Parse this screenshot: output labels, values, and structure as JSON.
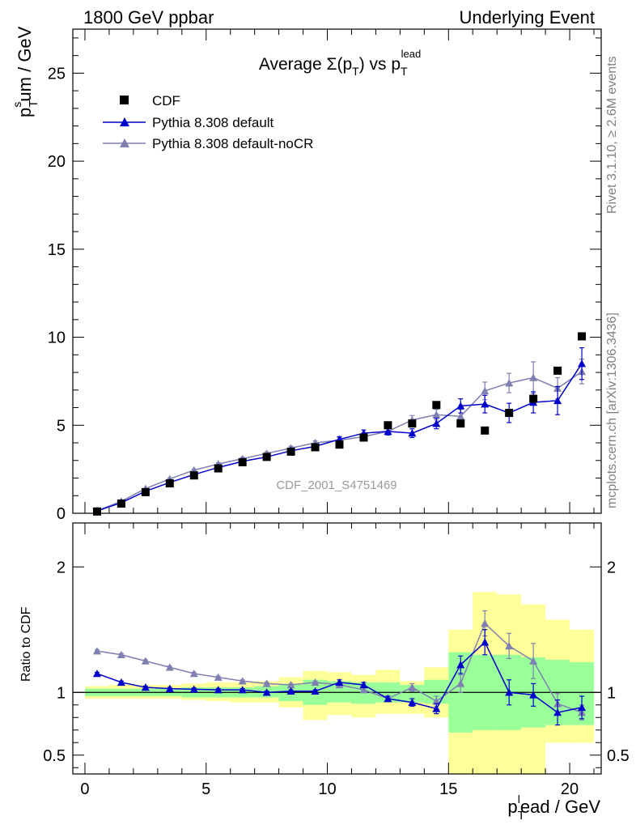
{
  "header": {
    "left": "1800 GeV ppbar",
    "right": "Underlying Event",
    "side_top": "Rivet 3.1.10, ≥ 2.6M events",
    "side_bottom": "mcplots.cern.ch [arXiv:1306.3436]"
  },
  "chart_data": [
    {
      "type": "scatter",
      "panel": "main",
      "title": "Average Σ(p_T) vs p_T^lead",
      "ylabel": "p_T^sum / GeV",
      "ylim": [
        0,
        27.5
      ],
      "xlim": [
        -0.5,
        21.3
      ],
      "yticks": [
        0,
        5,
        10,
        15,
        20,
        25
      ],
      "watermark": "CDF_2001_S4751469",
      "legend_position": "top-left",
      "x": [
        0.5,
        1.5,
        2.5,
        3.5,
        4.5,
        5.5,
        6.5,
        7.5,
        8.5,
        9.5,
        10.5,
        11.5,
        12.5,
        13.5,
        14.5,
        15.5,
        16.5,
        17.5,
        18.5,
        19.5,
        20.5
      ],
      "series": [
        {
          "name": "CDF",
          "color": "#000000",
          "marker": "square",
          "values": [
            0.1,
            0.55,
            1.2,
            1.7,
            2.15,
            2.55,
            2.9,
            3.2,
            3.5,
            3.75,
            3.9,
            4.3,
            5.0,
            5.1,
            6.15,
            5.1,
            4.7,
            5.7,
            6.5,
            8.1,
            10.05
          ]
        },
        {
          "name": "Pythia 8.308 default",
          "color": "#0000cc",
          "marker": "triangle",
          "values": [
            0.13,
            0.6,
            1.25,
            1.75,
            2.2,
            2.6,
            2.95,
            3.2,
            3.55,
            3.8,
            4.2,
            4.55,
            4.65,
            4.55,
            5.1,
            6.1,
            6.2,
            5.7,
            6.3,
            6.4,
            8.5
          ],
          "errors": [
            0.02,
            0.03,
            0.04,
            0.05,
            0.06,
            0.07,
            0.08,
            0.09,
            0.1,
            0.12,
            0.15,
            0.18,
            0.2,
            0.25,
            0.3,
            0.4,
            0.5,
            0.55,
            0.6,
            0.8,
            0.9
          ]
        },
        {
          "name": "Pythia 8.308 default-noCR",
          "color": "#7f7fb2",
          "marker": "triangle",
          "values": [
            0.15,
            0.68,
            1.4,
            1.95,
            2.45,
            2.8,
            3.1,
            3.4,
            3.7,
            4.0,
            4.15,
            4.35,
            4.65,
            5.3,
            5.6,
            5.5,
            6.95,
            7.4,
            7.7,
            7.1,
            8.05
          ],
          "errors": [
            0.02,
            0.03,
            0.04,
            0.05,
            0.06,
            0.07,
            0.08,
            0.09,
            0.1,
            0.12,
            0.15,
            0.18,
            0.2,
            0.25,
            0.3,
            0.4,
            0.5,
            0.55,
            0.9,
            0.6,
            0.7
          ]
        }
      ]
    },
    {
      "type": "scatter",
      "panel": "ratio",
      "ylabel": "Ratio to CDF",
      "xlabel": "p_T^lead / GeV",
      "ylim": [
        0.35,
        2.35
      ],
      "xlim": [
        -0.5,
        21.3
      ],
      "yticks": [
        0.5,
        1,
        2
      ],
      "xticks": [
        0,
        5,
        10,
        15,
        20
      ],
      "bands": {
        "yellow": {
          "color": "#ffff99",
          "lo": [
            0.95,
            0.95,
            0.95,
            0.95,
            0.94,
            0.93,
            0.92,
            0.92,
            0.88,
            0.78,
            0.82,
            0.8,
            0.83,
            0.83,
            0.8,
            0.35,
            0.35,
            0.35,
            0.35,
            0.6,
            0.6
          ],
          "hi": [
            1.05,
            1.06,
            1.06,
            1.06,
            1.07,
            1.08,
            1.08,
            1.09,
            1.12,
            1.17,
            1.16,
            1.14,
            1.18,
            1.09,
            1.2,
            1.5,
            1.8,
            1.78,
            1.7,
            1.58,
            1.5
          ]
        },
        "green": {
          "color": "#99ff99",
          "lo": [
            0.97,
            0.97,
            0.97,
            0.97,
            0.96,
            0.96,
            0.96,
            0.96,
            0.93,
            0.9,
            0.92,
            0.91,
            0.92,
            0.92,
            0.91,
            0.68,
            0.7,
            0.7,
            0.72,
            0.74,
            0.74
          ],
          "hi": [
            1.03,
            1.03,
            1.03,
            1.03,
            1.04,
            1.04,
            1.04,
            1.05,
            1.06,
            1.1,
            1.09,
            1.08,
            1.08,
            1.06,
            1.1,
            1.32,
            1.3,
            1.3,
            1.28,
            1.26,
            1.24
          ]
        }
      },
      "series": [
        {
          "name": "Pythia 8.308 default",
          "color": "#0000cc",
          "values": [
            1.15,
            1.08,
            1.04,
            1.03,
            1.025,
            1.02,
            1.02,
            1.0,
            1.01,
            1.01,
            1.08,
            1.06,
            0.95,
            0.92,
            0.87,
            1.22,
            1.4,
            1.0,
            0.98,
            0.84,
            0.88
          ],
          "errors": [
            0.01,
            0.01,
            0.01,
            0.01,
            0.01,
            0.01,
            0.01,
            0.01,
            0.01,
            0.01,
            0.02,
            0.02,
            0.02,
            0.03,
            0.04,
            0.07,
            0.1,
            0.1,
            0.09,
            0.1,
            0.09
          ]
        },
        {
          "name": "Pythia 8.308 default-noCR",
          "color": "#7f7fb2",
          "values": [
            1.33,
            1.3,
            1.25,
            1.2,
            1.15,
            1.12,
            1.09,
            1.07,
            1.06,
            1.08,
            1.06,
            1.02,
            0.95,
            1.04,
            0.93,
            1.07,
            1.55,
            1.37,
            1.25,
            0.91,
            0.84
          ],
          "errors": [
            0.01,
            0.01,
            0.01,
            0.01,
            0.01,
            0.01,
            0.01,
            0.01,
            0.01,
            0.01,
            0.02,
            0.02,
            0.02,
            0.03,
            0.04,
            0.07,
            0.1,
            0.1,
            0.14,
            0.08,
            0.06
          ]
        }
      ]
    }
  ]
}
